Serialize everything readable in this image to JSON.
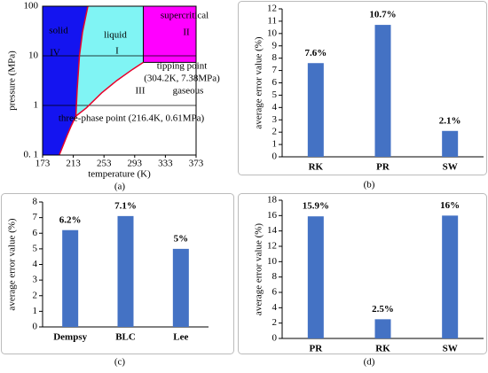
{
  "chart_data": [
    {
      "type": "phase",
      "panel_label": "(a)",
      "xlabel": "temperature (K)",
      "ylabel": "pressure (MPa)",
      "xlim": [
        173,
        373
      ],
      "xticks": [
        173,
        213,
        253,
        293,
        333,
        373
      ],
      "ylim": [
        0.1,
        100
      ],
      "yticks": [
        {
          "value": 0.1,
          "label": "0. 1"
        },
        1,
        10,
        100
      ],
      "log_y": true,
      "grid": true,
      "curves": [
        {
          "x": [
            194.7,
            200,
            205,
            210,
            216.4
          ],
          "values": [
            0.1,
            0.16,
            0.25,
            0.38,
            0.61
          ],
          "color": "#e8002a"
        },
        {
          "x": [
            216.4,
            218,
            221,
            225,
            232
          ],
          "values": [
            0.61,
            2,
            10,
            30,
            100
          ],
          "color": "#e8002a"
        },
        {
          "x": [
            216.4,
            230,
            250,
            270,
            290,
            304.2
          ],
          "values": [
            0.61,
            0.89,
            1.79,
            3.2,
            5.3,
            7.38
          ],
          "color": "#e8002a"
        }
      ],
      "regions": [
        {
          "name": "solid",
          "numeral": "IV",
          "color": "#1414f0"
        },
        {
          "name": "liquid",
          "numeral": "I",
          "color": "#80f4f4"
        },
        {
          "name": "supercritical",
          "numeral": "II",
          "color": "#ff00ff"
        },
        {
          "name": "gaseous",
          "numeral": "III",
          "color": "#ffffff"
        }
      ],
      "annotations": [
        "tipping point",
        "(304.2K, 7.38MPa)",
        "three-phase point (216.4K, 0.61MPa)"
      ]
    },
    {
      "type": "bar",
      "panel_label": "(b)",
      "ylabel": "average error value (%)",
      "categories": [
        "RK",
        "PR",
        "SW"
      ],
      "values": [
        7.6,
        10.7,
        2.1
      ],
      "value_labels": [
        "7.6%",
        "10.7%",
        "2.1%"
      ],
      "color": "#4472c4",
      "label_color": "#0000ff",
      "ylim": [
        0,
        12
      ],
      "yticks": [
        0,
        1,
        2,
        3,
        4,
        5,
        6,
        7,
        8,
        9,
        10,
        11,
        12
      ]
    },
    {
      "type": "bar",
      "panel_label": "(c)",
      "ylabel": "average error value (%)",
      "categories": [
        "Dempsy",
        "BLC",
        "Lee"
      ],
      "values": [
        6.2,
        7.1,
        5
      ],
      "value_labels": [
        "6.2%",
        "7.1%",
        "5%"
      ],
      "color": "#4472c4",
      "label_color": "#0000ff",
      "ylim": [
        0,
        8
      ],
      "yticks": [
        0,
        1,
        2,
        3,
        4,
        5,
        6,
        7,
        8
      ]
    },
    {
      "type": "bar",
      "panel_label": "(d)",
      "ylabel": "average error value (%)",
      "categories": [
        "PR",
        "RK",
        "SW"
      ],
      "values": [
        15.9,
        2.5,
        16
      ],
      "value_labels": [
        "15.9%",
        "2.5%",
        "16%"
      ],
      "color": "#4472c4",
      "label_color": "#0000ff",
      "ylim": [
        0,
        18
      ],
      "yticks": [
        0,
        2,
        4,
        6,
        8,
        10,
        12,
        14,
        16,
        18
      ]
    }
  ]
}
